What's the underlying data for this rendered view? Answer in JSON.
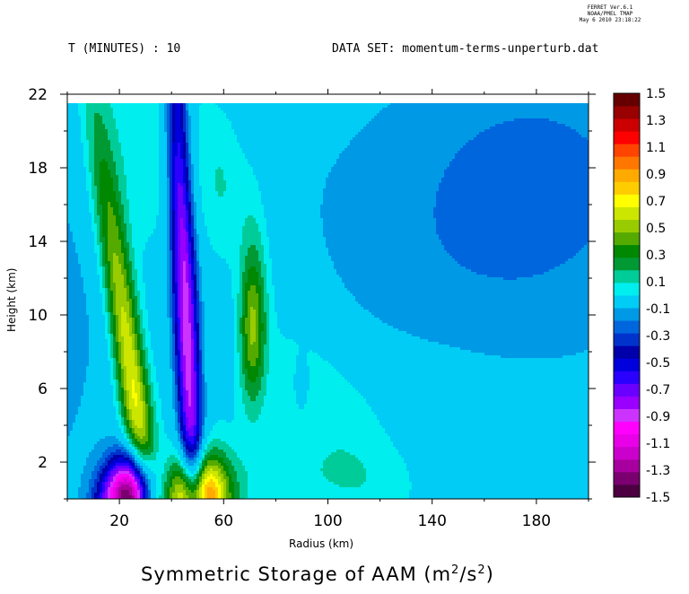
{
  "header": {
    "stamp_line1": "FERRET  Ver.6.1",
    "stamp_line2": "NOAA/PMEL TMAP",
    "stamp_line3": "May  6 2010 23:18:22",
    "time_label": "T (MINUTES) : 10",
    "dataset_label": "DATA SET: momentum-terms-unperturb.dat"
  },
  "chart_data": {
    "type": "heatmap",
    "title": "Symmetric Storage of AAM (m²/s²)",
    "title_main": "Symmetric Storage of AAM (m",
    "title_sup1": "2",
    "title_mid": "/s",
    "title_sup2": "2",
    "title_end": ")",
    "xlabel": "Radius (km)",
    "ylabel": "Height (km)",
    "xlim": [
      0,
      200
    ],
    "ylim": [
      0,
      22
    ],
    "data_top": 21.5,
    "x_ticks": [
      20,
      60,
      100,
      140,
      180
    ],
    "y_ticks": [
      2,
      6,
      10,
      14,
      18,
      22
    ],
    "grid": false,
    "colorbar": {
      "levels": [
        -1.5,
        -1.4,
        -1.3,
        -1.2,
        -1.1,
        -1.0,
        -0.9,
        -0.8,
        -0.7,
        -0.6,
        -0.5,
        -0.4,
        -0.3,
        -0.2,
        -0.1,
        0.1,
        0.2,
        0.3,
        0.4,
        0.5,
        0.6,
        0.7,
        0.8,
        0.9,
        1.0,
        1.1,
        1.2,
        1.3,
        1.4,
        1.5
      ],
      "labels": [
        "-1.5",
        "-1.3",
        "-1.1",
        "-0.9",
        "-0.7",
        "-0.5",
        "-0.3",
        "-0.1",
        "0.1",
        "0.3",
        "0.5",
        "0.7",
        "0.9",
        "1.1",
        "1.3",
        "1.5"
      ],
      "colors": [
        "#4c0040",
        "#7a0070",
        "#a8009e",
        "#cc00cc",
        "#e800e8",
        "#ff00ff",
        "#cc33ff",
        "#9900ff",
        "#6a00ff",
        "#2a00ff",
        "#0000dd",
        "#0000aa",
        "#0033cc",
        "#0066dd",
        "#0099e6",
        "#00ccf5",
        "#00eeee",
        "#00cc99",
        "#009933",
        "#008800",
        "#55aa00",
        "#99cc00",
        "#cce600",
        "#ffff00",
        "#ffcc00",
        "#ffaa00",
        "#ff7700",
        "#ff4400",
        "#ff0000",
        "#cc0000",
        "#990000",
        "#660000"
      ]
    },
    "features": [
      {
        "x": 25,
        "y": 0.5,
        "value": -1.5,
        "desc": "strong negative near surface"
      },
      {
        "x": 26,
        "y": 5.3,
        "value": 0.75,
        "desc": "positive lobe"
      },
      {
        "x": 46,
        "y": 8.5,
        "value": -0.9,
        "desc": "negative band"
      },
      {
        "x": 50,
        "y": 0.4,
        "value": 1.3,
        "desc": "strong positive near surface"
      },
      {
        "x": 71,
        "y": 9.2,
        "value": 0.45,
        "desc": "positive lobe"
      },
      {
        "x": 90,
        "y": 6.0,
        "value": -0.2,
        "desc": "small negative patch"
      }
    ]
  }
}
